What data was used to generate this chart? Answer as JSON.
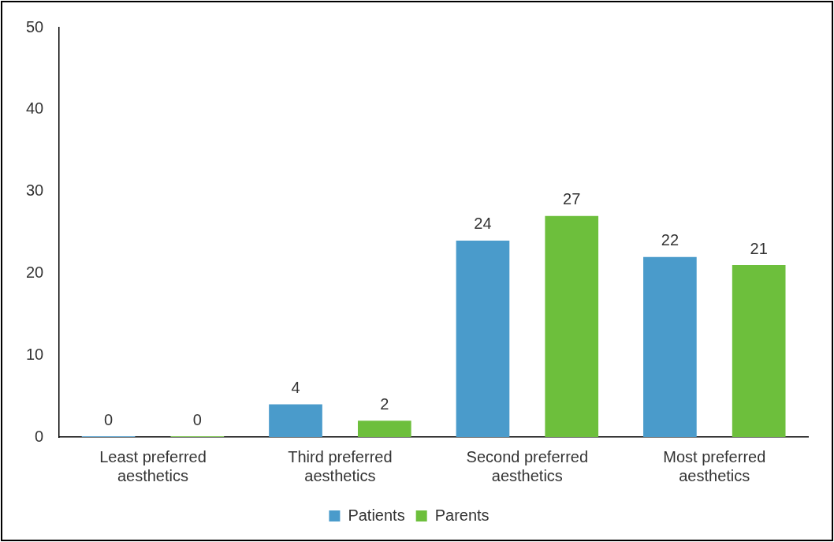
{
  "chart_data": {
    "type": "bar",
    "categories": [
      "Least preferred aesthetics",
      "Third preferred aesthetics",
      "Second preferred aesthetics",
      "Most preferred aesthetics"
    ],
    "series": [
      {
        "name": "Patients",
        "color": "#4a9bcb",
        "values": [
          0,
          4,
          24,
          22
        ]
      },
      {
        "name": "Parents",
        "color": "#6dbf3c",
        "values": [
          0,
          2,
          27,
          21
        ]
      }
    ],
    "ylim": [
      0,
      50
    ],
    "yticks": [
      0,
      10,
      20,
      30,
      40,
      50
    ],
    "grid": false,
    "legend": "bottom",
    "data_labels": true
  }
}
